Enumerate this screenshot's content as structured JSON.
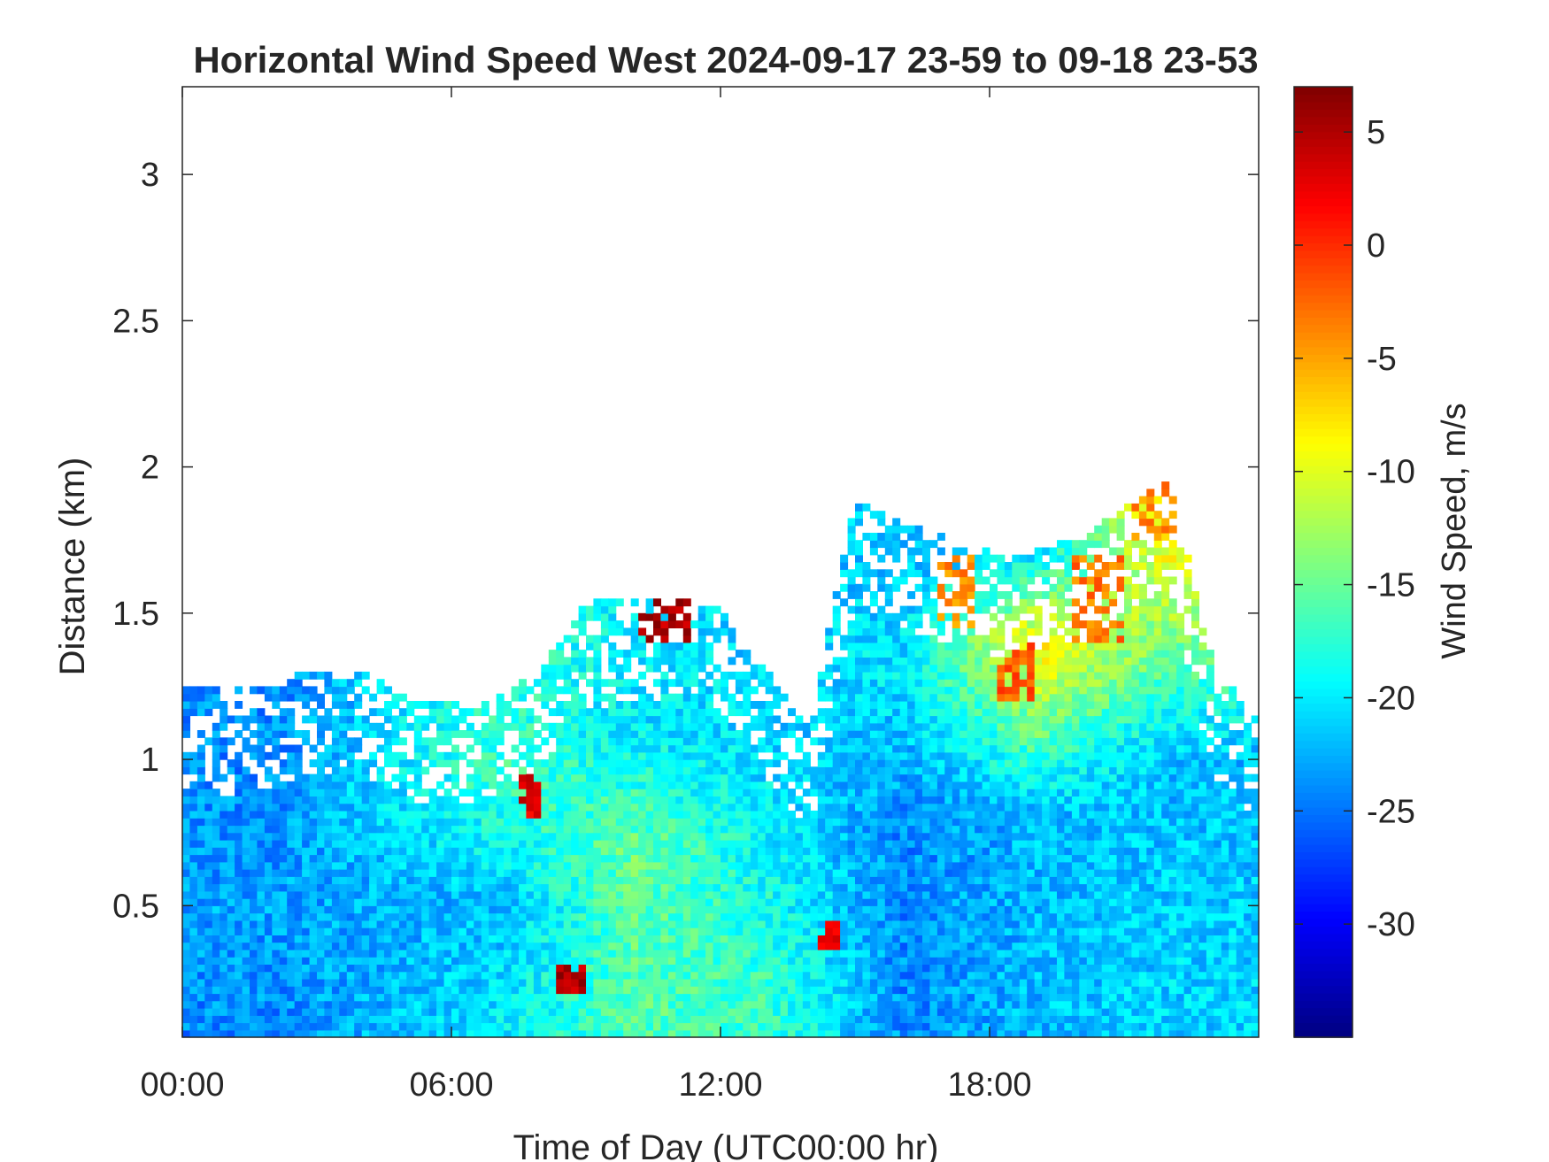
{
  "chart_data": {
    "type": "heatmap",
    "title": "Horizontal Wind Speed West 2024-09-17 23-59 to 09-18 23-53",
    "xlabel": "Time of Day (UTC00:00 hr)",
    "ylabel": "Distance (km)",
    "colorbar_label": "Wind Speed, m/s",
    "colormap": "jet",
    "xlim_hours": [
      0,
      24
    ],
    "ylim_km": [
      0.05,
      3.3
    ],
    "clim": [
      -35,
      7
    ],
    "x_ticks": [
      "00:00",
      "06:00",
      "12:00",
      "18:00"
    ],
    "x_tick_hours": [
      0,
      6,
      12,
      18
    ],
    "y_ticks": [
      "0.5",
      "1",
      "1.5",
      "2",
      "2.5",
      "3"
    ],
    "y_tick_values": [
      0.5,
      1,
      1.5,
      2,
      2.5,
      3
    ],
    "colorbar_ticks": [
      "5",
      "0",
      "-5",
      "-10",
      "-15",
      "-20",
      "-25",
      "-30"
    ],
    "colorbar_tick_values": [
      5,
      0,
      -5,
      -10,
      -15,
      -20,
      -25,
      -30
    ],
    "time_resolution_min": 10,
    "range_resolution_km": 0.025,
    "data_top_km_by_hour": [
      [
        0,
        1.25
      ],
      [
        1,
        1.22
      ],
      [
        2,
        1.25
      ],
      [
        3,
        1.3
      ],
      [
        4,
        1.3
      ],
      [
        5,
        1.2
      ],
      [
        6,
        1.2
      ],
      [
        7,
        1.2
      ],
      [
        8,
        1.3
      ],
      [
        9,
        1.52
      ],
      [
        10,
        1.55
      ],
      [
        11,
        1.55
      ],
      [
        12,
        1.5
      ],
      [
        13,
        1.3
      ],
      [
        14,
        1.1
      ],
      [
        15,
        1.9
      ],
      [
        16,
        1.8
      ],
      [
        17,
        1.75
      ],
      [
        18,
        1.7
      ],
      [
        19,
        1.7
      ],
      [
        20,
        1.75
      ],
      [
        21,
        1.85
      ],
      [
        22,
        1.95
      ],
      [
        23,
        1.3
      ],
      [
        24,
        1.15
      ]
    ],
    "mean_speed_profiles": [
      {
        "hour": 2,
        "points_km_ms": [
          [
            0.1,
            -24
          ],
          [
            0.5,
            -23
          ],
          [
            1.0,
            -24
          ]
        ]
      },
      {
        "hour": 7,
        "points_km_ms": [
          [
            0.1,
            -20
          ],
          [
            0.5,
            -22
          ],
          [
            0.9,
            -17
          ]
        ]
      },
      {
        "hour": 10,
        "points_km_ms": [
          [
            0.1,
            -16
          ],
          [
            0.7,
            -15
          ],
          [
            1.1,
            -20
          ],
          [
            1.45,
            -20
          ]
        ]
      },
      {
        "hour": 13,
        "points_km_ms": [
          [
            0.2,
            -17
          ],
          [
            0.6,
            -19
          ],
          [
            1.1,
            -21
          ]
        ]
      },
      {
        "hour": 16,
        "points_km_ms": [
          [
            0.3,
            -24
          ],
          [
            0.8,
            -24
          ],
          [
            1.3,
            -20
          ],
          [
            1.7,
            -22
          ]
        ]
      },
      {
        "hour": 19,
        "points_km_ms": [
          [
            0.3,
            -22
          ],
          [
            0.8,
            -22
          ],
          [
            1.4,
            -8
          ],
          [
            1.7,
            -20
          ]
        ]
      },
      {
        "hour": 22,
        "points_km_ms": [
          [
            0.3,
            -21
          ],
          [
            1.0,
            -22
          ],
          [
            1.9,
            -5
          ]
        ]
      }
    ],
    "high_speed_features": [
      {
        "hour_start": 8.3,
        "hour_end": 8.9,
        "km_low": 0.2,
        "km_high": 0.3,
        "speed_ms": 5
      },
      {
        "hour_start": 10.1,
        "hour_end": 11.4,
        "km_low": 1.4,
        "km_high": 1.55,
        "speed_ms": 5
      },
      {
        "hour_start": 7.5,
        "hour_end": 8.0,
        "km_low": 0.8,
        "km_high": 0.95,
        "speed_ms": 3
      },
      {
        "hour_start": 14.1,
        "hour_end": 14.6,
        "km_low": 0.35,
        "km_high": 0.45,
        "speed_ms": 2
      },
      {
        "hour_start": 18.1,
        "hour_end": 18.9,
        "km_low": 1.2,
        "km_high": 1.4,
        "speed_ms": -2
      },
      {
        "hour_start": 19.8,
        "hour_end": 21.0,
        "km_low": 1.4,
        "km_high": 1.7,
        "speed_ms": -3
      },
      {
        "hour_start": 21.1,
        "hour_end": 22.2,
        "km_low": 1.75,
        "km_high": 2.0,
        "speed_ms": -4
      },
      {
        "hour_start": 16.8,
        "hour_end": 17.6,
        "km_low": 1.45,
        "km_high": 1.7,
        "speed_ms": -4
      }
    ]
  }
}
